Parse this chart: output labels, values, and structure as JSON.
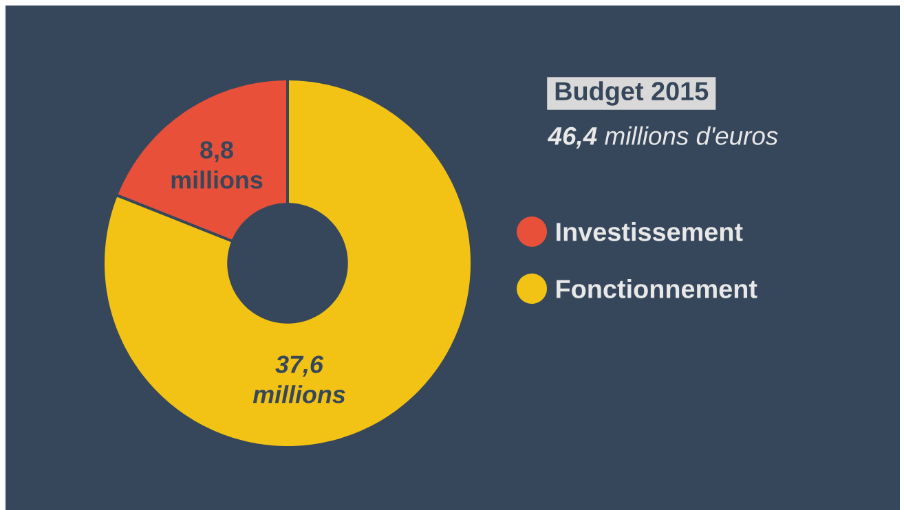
{
  "chart_data": {
    "type": "donut",
    "title": "Budget 2015",
    "subtitle": "**46,4** millions d'euros",
    "categories": [
      "Investissement",
      "Fonctionnement"
    ],
    "values": [
      8.8,
      37.6
    ],
    "colors": [
      "#e8503a",
      "#f2c314"
    ],
    "value_labels": [
      "8,8 millions",
      "37,6 millions"
    ],
    "legend": "right"
  }
}
